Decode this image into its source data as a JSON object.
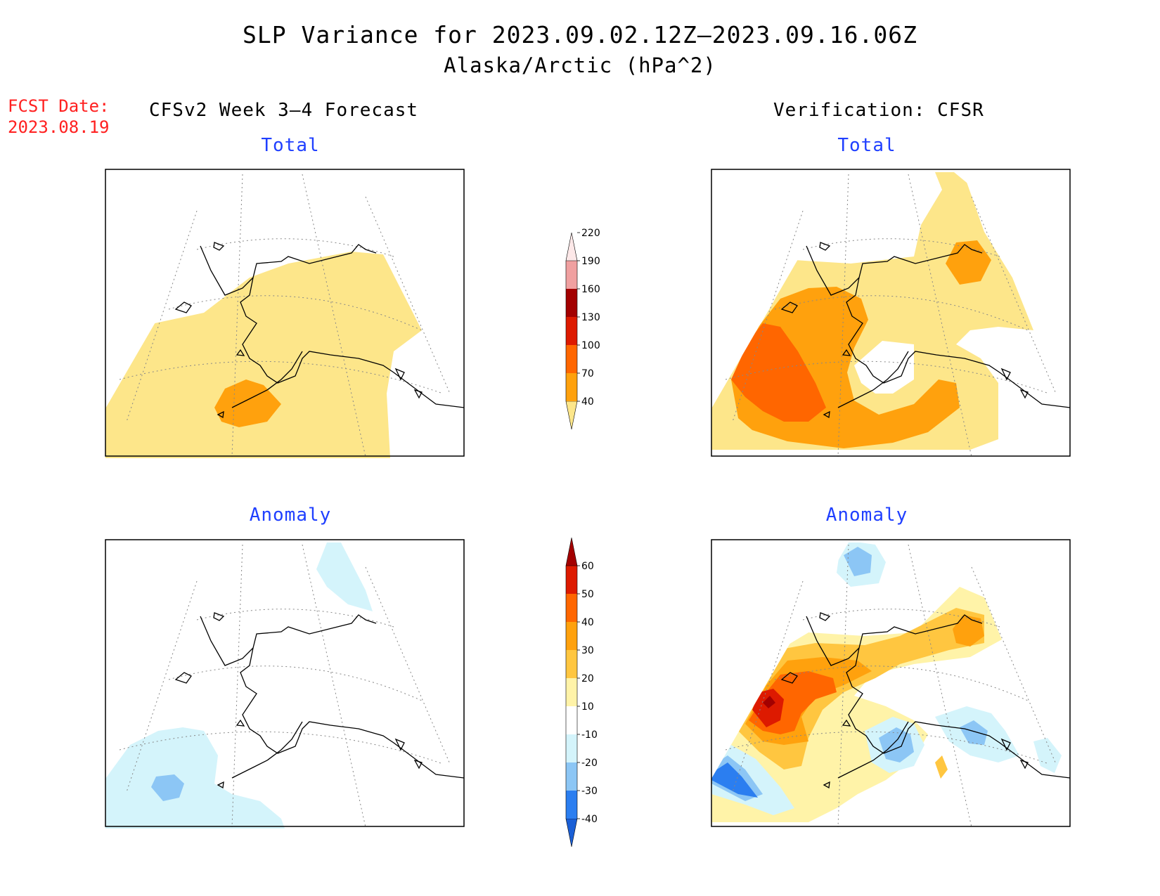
{
  "title": "SLP Variance for 2023.09.02.12Z–2023.09.16.06Z",
  "subtitle": "Alaska/Arctic (hPa^2)",
  "fcst_label": "FCST Date:",
  "fcst_date": "2023.08.19",
  "left_header": "CFSv2 Week 3–4 Forecast",
  "right_header": "Verification: CFSR",
  "panels": {
    "top_left": "Total",
    "top_right": "Total",
    "bottom_left": "Anomaly",
    "bottom_right": "Anomaly"
  },
  "colorbar_total": {
    "labels": [
      "40",
      "70",
      "100",
      "130",
      "160",
      "190",
      "220"
    ],
    "colors": [
      "#fde68a",
      "#ffa10d",
      "#ff6600",
      "#dd1a00",
      "#a30000",
      "#f0a0a0",
      "#fde8e8"
    ]
  },
  "colorbar_anomaly": {
    "labels": [
      "-40",
      "-30",
      "-20",
      "-10",
      "10",
      "20",
      "30",
      "40",
      "50",
      "60"
    ],
    "colors": [
      "#1a5fd6",
      "#2b7ef0",
      "#8cc6f5",
      "#d4f4fb",
      "#ffffff",
      "#fff3a8",
      "#ffc640",
      "#ffa10d",
      "#ff6600",
      "#dd1a00",
      "#a30000"
    ]
  }
}
